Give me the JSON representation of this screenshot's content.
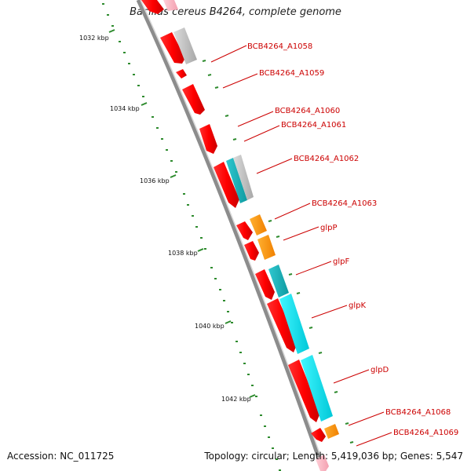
{
  "title": "Bacillus cereus B4264, complete genome",
  "accession_text": "Accession: NC_011725",
  "topology_text": "Topology: circular; Length: 5,419,036 bp; Genes: 5,547",
  "colors": {
    "forward_gene": "#ff0000",
    "reverse_gene": "#e00010",
    "cyan_gene": "#00e5f0",
    "teal_gene": "#16b8c0",
    "orange_gene": "#ff9900",
    "gray_gene": "#c0c0c0",
    "backbone": "#8c8c8c",
    "tick_marks": "#2e8b2e",
    "label_text": "#cc0000"
  },
  "tick_labels": [
    "1032 kbp",
    "1034 kbp",
    "1036 kbp",
    "1038 kbp",
    "1040 kbp",
    "1042 kbp"
  ],
  "gene_labels": [
    "BCB4264_A1058",
    "BCB4264_A1059",
    "BCB4264_A1060",
    "BCB4264_A1061",
    "BCB4264_A1062",
    "BCB4264_A1063",
    "glpP",
    "glpF",
    "glpK",
    "glpD",
    "BCB4264_A1068",
    "BCB4264_A1069"
  ]
}
